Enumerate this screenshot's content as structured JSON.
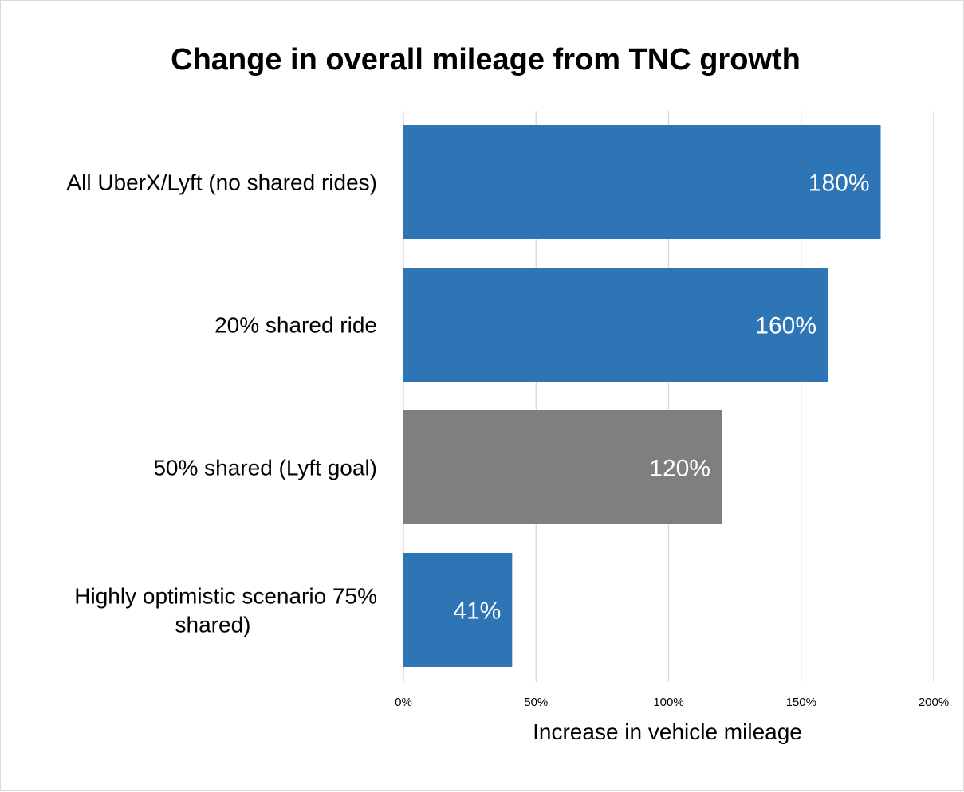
{
  "chart_data": {
    "type": "bar",
    "orientation": "horizontal",
    "title": "Change in overall mileage from TNC growth",
    "xlabel": "Increase in vehicle mileage",
    "ylabel": "",
    "xlim": [
      0,
      200
    ],
    "x_ticks": [
      0,
      50,
      100,
      150,
      200
    ],
    "x_tick_labels": [
      "0%",
      "50%",
      "100%",
      "150%",
      "200%"
    ],
    "grid": "vertical",
    "legend": "none",
    "categories": [
      "All UberX/Lyft (no shared rides)",
      "20% shared ride",
      "50% shared (Lyft goal)",
      "Highly optimistic scenario 75% shared)"
    ],
    "values": [
      180,
      160,
      120,
      41
    ],
    "data_labels": [
      "180%",
      "160%",
      "120%",
      "41%"
    ],
    "bar_colors": [
      "#2e75b6",
      "#2e75b6",
      "#7f7f7f",
      "#2e75b6"
    ]
  }
}
